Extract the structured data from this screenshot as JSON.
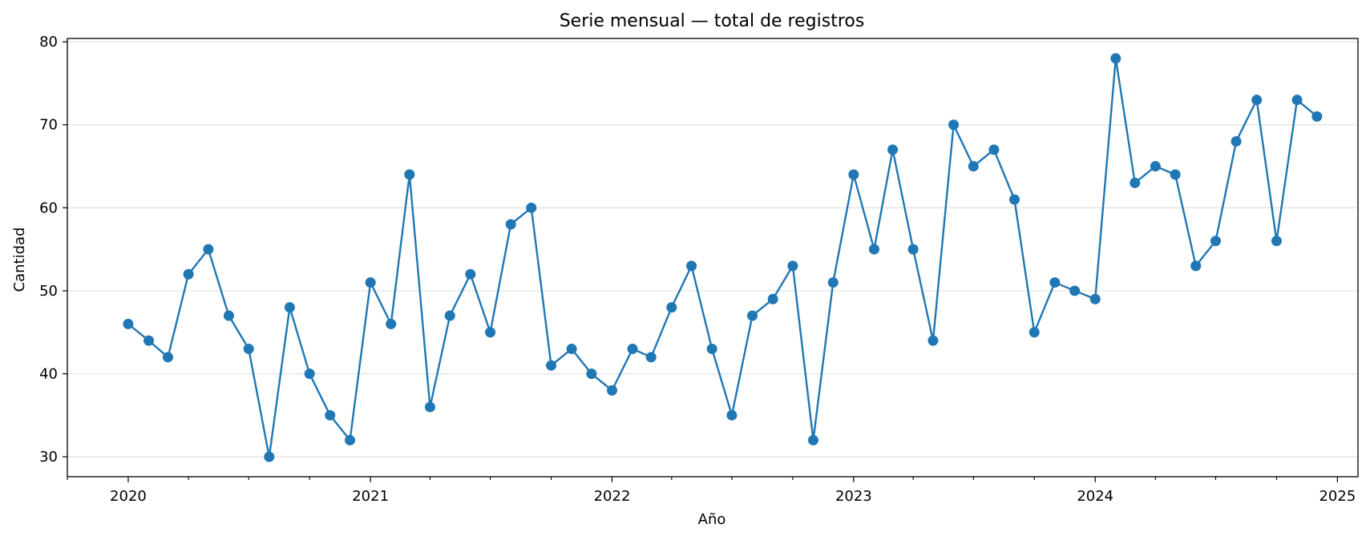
{
  "chart_data": {
    "type": "line",
    "title": "Serie mensual — total de registros",
    "xlabel": "Año",
    "ylabel": "Cantidad",
    "xlim": [
      "2019-10-01",
      "2025-02-01"
    ],
    "ylim": [
      27.6,
      80.4
    ],
    "x_ticks": [
      "2020",
      "2021",
      "2022",
      "2023",
      "2024",
      "2025"
    ],
    "y_ticks": [
      30,
      40,
      50,
      60,
      70,
      80
    ],
    "grid": "horizontal",
    "marker": "circle",
    "colors": {
      "series": "#1f77b4",
      "grid": "#e0e0e0",
      "axes": "#000000"
    },
    "series": [
      {
        "x": [
          "2020-01",
          "2020-02",
          "2020-03",
          "2020-04",
          "2020-05",
          "2020-06",
          "2020-07",
          "2020-08",
          "2020-09",
          "2020-10",
          "2020-11",
          "2020-12",
          "2021-01",
          "2021-02",
          "2021-03",
          "2021-04",
          "2021-05",
          "2021-06",
          "2021-07",
          "2021-08",
          "2021-09",
          "2021-10",
          "2021-11",
          "2021-12",
          "2022-01",
          "2022-02",
          "2022-03",
          "2022-04",
          "2022-05",
          "2022-06",
          "2022-07",
          "2022-08",
          "2022-09",
          "2022-10",
          "2022-11",
          "2022-12",
          "2023-01",
          "2023-02",
          "2023-03",
          "2023-04",
          "2023-05",
          "2023-06",
          "2023-07",
          "2023-08",
          "2023-09",
          "2023-10",
          "2023-11",
          "2023-12",
          "2024-01",
          "2024-02",
          "2024-03",
          "2024-04",
          "2024-05",
          "2024-06",
          "2024-07",
          "2024-08",
          "2024-09",
          "2024-10",
          "2024-11",
          "2024-12"
        ],
        "values": [
          46,
          44,
          42,
          52,
          55,
          47,
          43,
          30,
          48,
          40,
          35,
          32,
          51,
          46,
          64,
          36,
          47,
          52,
          45,
          58,
          60,
          41,
          43,
          40,
          38,
          43,
          42,
          48,
          53,
          43,
          35,
          47,
          49,
          53,
          32,
          51,
          64,
          55,
          67,
          55,
          44,
          70,
          65,
          67,
          61,
          45,
          51,
          50,
          49,
          78,
          63,
          65,
          64,
          53,
          56,
          68,
          73,
          56,
          73,
          71
        ]
      }
    ]
  }
}
